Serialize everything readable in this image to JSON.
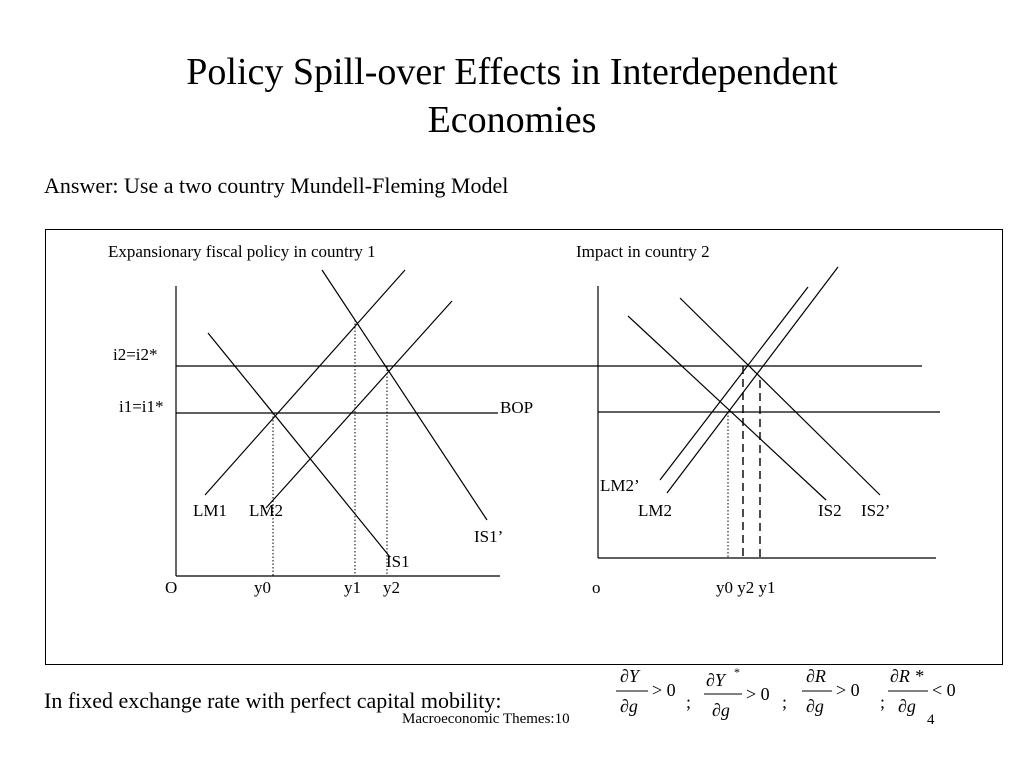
{
  "slide": {
    "title_line1": "Policy Spill-over Effects in Interdependent",
    "title_line2": "Economies",
    "subtitle": "Answer: Use a two country Mundell-Fleming Model",
    "footer_text": "In fixed exchange rate with perfect capital mobility:",
    "footer_center": "Macroeconomic Themes:10",
    "page_number": "4"
  },
  "diagram": {
    "left": {
      "caption": "Expansionary fiscal policy in country 1",
      "rate_high": "i2=i2*",
      "rate_low": "i1=i1*",
      "bop": "BOP",
      "lm1": "LM1",
      "lm2": "LM2",
      "is1_prime": "IS1’",
      "is1": "IS1",
      "origin": "O",
      "y0": "y0",
      "y1": "y1",
      "y2": "y2"
    },
    "right": {
      "caption": "Impact in country 2",
      "lm2_prime": "LM2’",
      "lm2": "LM2",
      "is2": "IS2",
      "is2_prime": "IS2’",
      "origin": "o",
      "x_labels": "y0 y2 y1"
    }
  },
  "conditions": [
    {
      "num": "∂Y",
      "den": "∂g",
      "rel": "> 0",
      "sep": ";"
    },
    {
      "num": "∂Y",
      "sup": "*",
      "den": "∂g",
      "rel": "> 0",
      "sep": ";"
    },
    {
      "num": "∂R",
      "den": "∂g",
      "rel": "> 0",
      "sep": ";"
    },
    {
      "num": "∂R *",
      "den": "∂g",
      "rel": "< 0",
      "sep": ""
    }
  ]
}
